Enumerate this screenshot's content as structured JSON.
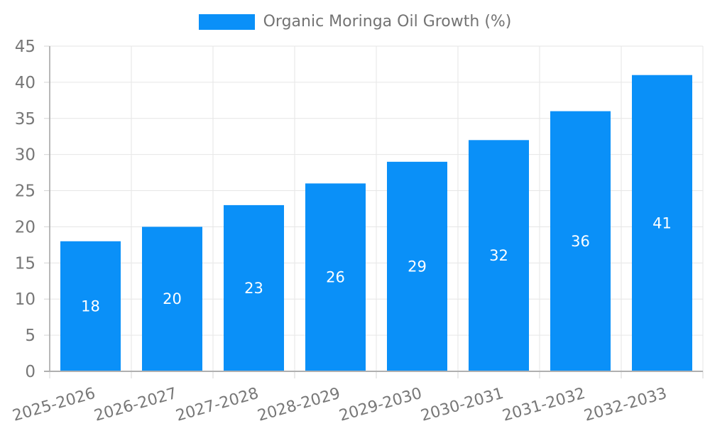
{
  "chart_data": {
    "type": "bar",
    "title": "",
    "legend": {
      "position": "top",
      "label": "Organic Moringa Oil Growth (%)"
    },
    "categories": [
      "2025-2026",
      "2026-2027",
      "2027-2028",
      "2028-2029",
      "2029-2030",
      "2030-2031",
      "2031-2032",
      "2032-2033"
    ],
    "series": [
      {
        "name": "Organic Moringa Oil Growth (%)",
        "values": [
          18,
          20,
          23,
          26,
          29,
          32,
          36,
          41
        ]
      }
    ],
    "value_labels": {
      "show": true,
      "position": "center-inside"
    },
    "xlabel": "",
    "ylabel": "",
    "ylim": [
      0,
      45
    ],
    "yticks": [
      0,
      5,
      10,
      15,
      20,
      25,
      30,
      35,
      40,
      45
    ],
    "grid": true,
    "x_label_rotation_deg": -16,
    "colors": {
      "bar": "#0a90f8",
      "grid": "#e6e6e6",
      "tick": "#d4d4d4",
      "axis": "#b0b0b0",
      "tick_text": "#777777",
      "value_label_text": "#ffffff",
      "legend_text": "#737373",
      "background": "#ffffff"
    }
  }
}
